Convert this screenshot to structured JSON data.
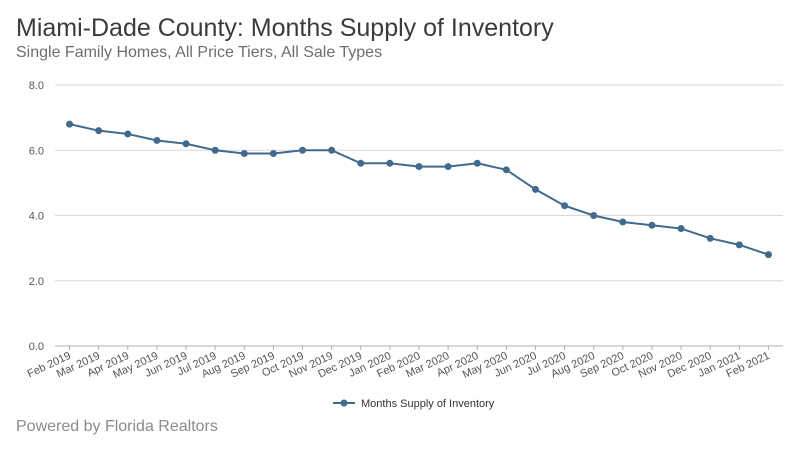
{
  "header": {
    "title": "Miami-Dade County: Months Supply of Inventory",
    "subtitle": "Single Family Homes, All Price Tiers, All Sale Types"
  },
  "footer": {
    "credit": "Powered by Florida Realtors"
  },
  "colors": {
    "series": "#426a8c",
    "grid": "#d9d9d9",
    "axis": "#b0b0b0"
  },
  "chart_data": {
    "type": "line",
    "title": "",
    "xlabel": "",
    "ylabel": "",
    "ylim": [
      0,
      8
    ],
    "yticks": [
      "0.0",
      "2.0",
      "4.0",
      "6.0",
      "8.0"
    ],
    "grid": true,
    "legend_position": "bottom",
    "categories": [
      "Feb 2019",
      "Mar 2019",
      "Apr 2019",
      "May 2019",
      "Jun 2019",
      "Jul 2019",
      "Aug 2019",
      "Sep 2019",
      "Oct 2019",
      "Nov 2019",
      "Dec 2019",
      "Jan 2020",
      "Feb 2020",
      "Mar 2020",
      "Apr 2020",
      "May 2020",
      "Jun 2020",
      "Jul 2020",
      "Aug 2020",
      "Sep 2020",
      "Oct 2020",
      "Nov 2020",
      "Dec 2020",
      "Jan 2021",
      "Feb 2021"
    ],
    "series": [
      {
        "name": "Months Supply of Inventory",
        "values": [
          6.8,
          6.6,
          6.5,
          6.3,
          6.2,
          6.0,
          5.9,
          5.9,
          6.0,
          6.0,
          5.6,
          5.6,
          5.5,
          5.5,
          5.6,
          5.4,
          4.8,
          4.3,
          4.0,
          3.8,
          3.7,
          3.6,
          3.3,
          3.1,
          2.8
        ]
      }
    ]
  }
}
